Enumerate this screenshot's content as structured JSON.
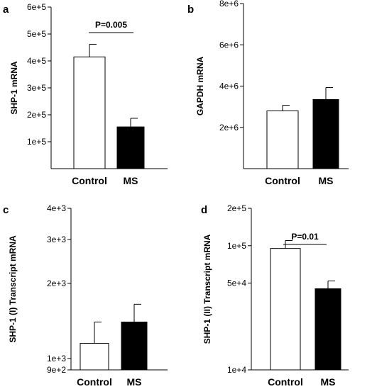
{
  "chart_data": [
    {
      "panel": "a",
      "type": "bar",
      "categories": [
        "Control",
        "MS"
      ],
      "values": [
        415000,
        155000
      ],
      "errors": [
        47000,
        32000
      ],
      "fills": [
        "#ffffff",
        "#000000"
      ],
      "ylabel": "SHP-1 mRNA",
      "ylim": [
        0,
        600000
      ],
      "scale": "linear",
      "yticks": [
        100000,
        200000,
        300000,
        400000,
        500000,
        600000
      ],
      "ytick_labels": [
        "1e+5",
        "2e+5",
        "3e+5",
        "4e+5",
        "5e+5",
        "6e+5"
      ],
      "annotation": "P=0.005"
    },
    {
      "panel": "b",
      "type": "bar",
      "categories": [
        "Control",
        "MS"
      ],
      "values": [
        2800000,
        3350000
      ],
      "errors": [
        270000,
        580000
      ],
      "fills": [
        "#ffffff",
        "#000000"
      ],
      "ylabel": "GAPDH mRNA",
      "ylim": [
        0,
        8000000
      ],
      "scale": "linear",
      "yticks": [
        2000000,
        4000000,
        6000000,
        8000000
      ],
      "ytick_labels": [
        "2e+6",
        "4e+6",
        "6e+6",
        "8e+6"
      ],
      "annotation": ""
    },
    {
      "panel": "c",
      "type": "bar",
      "categories": [
        "Control",
        "MS"
      ],
      "values": [
        1150,
        1400
      ],
      "errors": [
        250,
        250
      ],
      "fills": [
        "#ffffff",
        "#000000"
      ],
      "ylabel": "SHP-1 (I) Transcript mRNA",
      "ylim": [
        900,
        4000
      ],
      "scale": "log",
      "yticks": [
        900,
        1000,
        2000,
        3000,
        4000
      ],
      "ytick_labels": [
        "9e+2",
        "1e+3",
        "2e+3",
        "3e+3",
        "4e+3"
      ],
      "annotation": ""
    },
    {
      "panel": "d",
      "type": "bar",
      "categories": [
        "Control",
        "MS"
      ],
      "values": [
        95000,
        45000
      ],
      "errors": [
        15000,
        7000
      ],
      "fills": [
        "#ffffff",
        "#000000"
      ],
      "ylabel": "SHP-1 (II) Transcript mRNA",
      "ylim": [
        10000,
        200000
      ],
      "scale": "log",
      "yticks": [
        10000,
        50000,
        100000,
        200000
      ],
      "ytick_labels": [
        "1e+4",
        "5e+4",
        "1e+5",
        "2e+5"
      ],
      "annotation": "P=0.01"
    }
  ]
}
